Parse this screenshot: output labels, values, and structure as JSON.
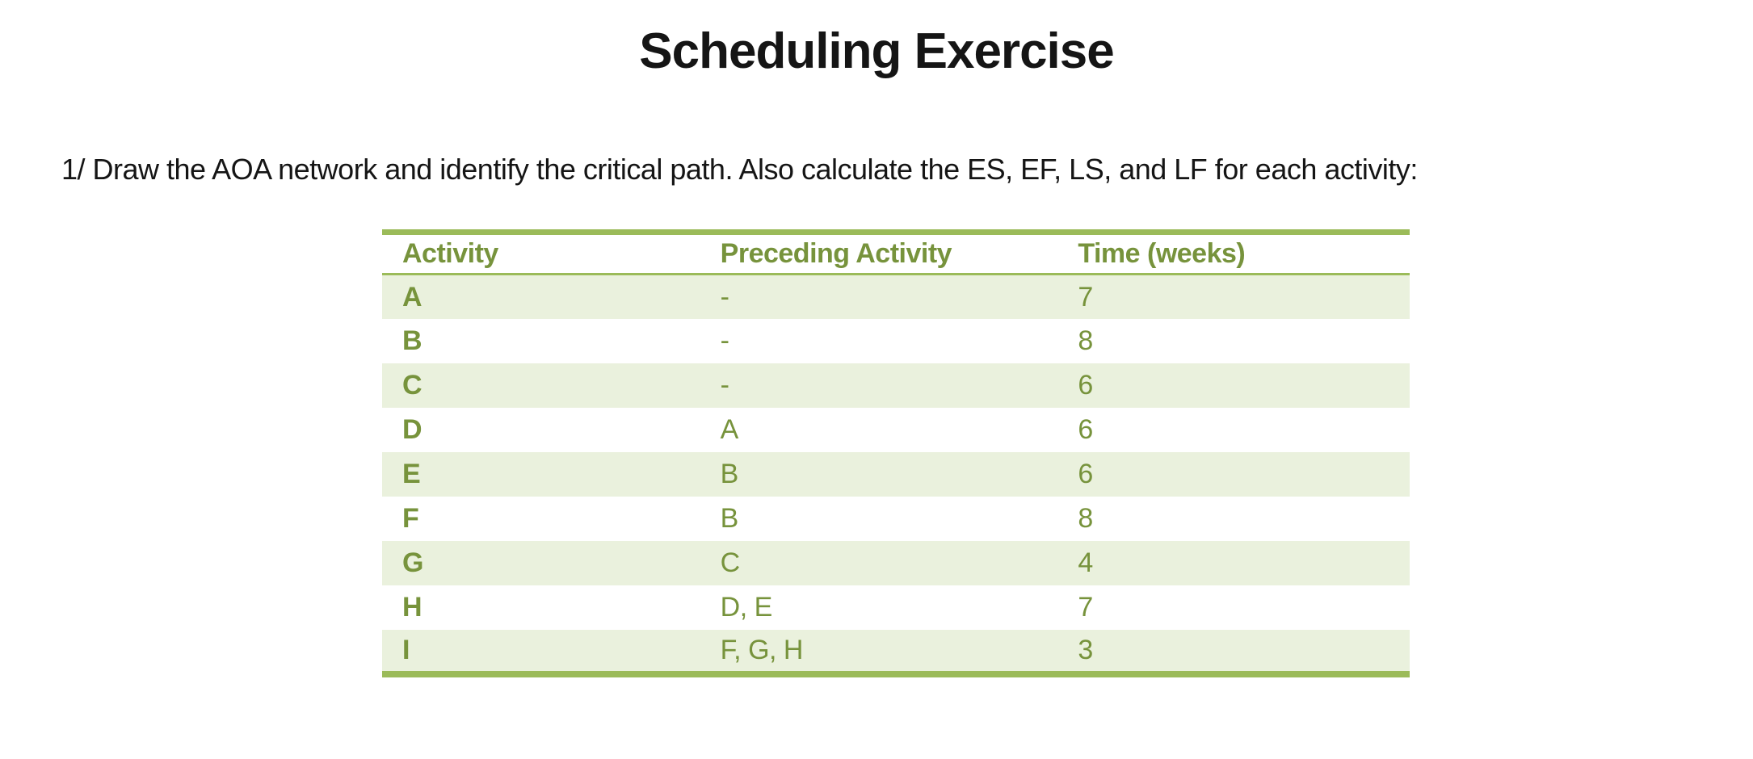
{
  "document": {
    "title": "Scheduling Exercise",
    "instruction": "1/ Draw the AOA network and identify the critical path. Also calculate the ES, EF, LS, and LF for each activity:"
  },
  "table": {
    "columns": [
      "Activity",
      "Preceding Activity",
      "Time (weeks)"
    ],
    "rows": [
      [
        "A",
        "-",
        "7"
      ],
      [
        "B",
        "-",
        "8"
      ],
      [
        "C",
        "-",
        "6"
      ],
      [
        "D",
        "A",
        "6"
      ],
      [
        "E",
        "B",
        "6"
      ],
      [
        "F",
        "B",
        "8"
      ],
      [
        "G",
        "C",
        "4"
      ],
      [
        "H",
        "D, E",
        "7"
      ],
      [
        "I",
        "F, G, H",
        "3"
      ]
    ]
  },
  "colors": {
    "table_border": "#9BBB59",
    "table_text": "#77933C",
    "row_stripe": "#EAF1DD",
    "body_text": "#151515"
  }
}
